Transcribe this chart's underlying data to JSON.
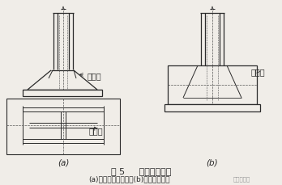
{
  "bg_color": "#f0ede8",
  "line_color": "#2a2a2a",
  "dashed_color": "#555555",
  "title": "图 5     柱脚底板加固",
  "subtitle": "(a)增设加劲肋加固；(b)浇混凝土加固",
  "label_a": "(a)",
  "label_b": "(b)",
  "label_jiajin": "加劲肋",
  "label_hunningtu": "混凝土",
  "watermark": "钢结构技术",
  "title_fontsize": 8,
  "subtitle_fontsize": 6.5,
  "label_fontsize": 6.5,
  "annot_fontsize": 7
}
